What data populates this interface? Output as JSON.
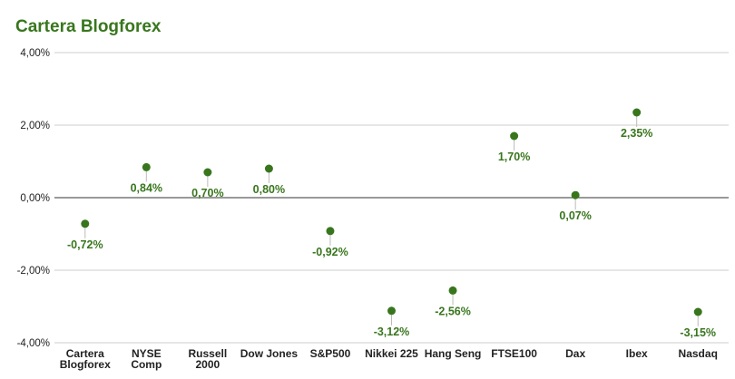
{
  "chart_data": {
    "type": "scatter",
    "title": "Cartera Blogforex",
    "categories": [
      [
        "Cartera",
        "Blogforex"
      ],
      [
        "NYSE",
        "Comp"
      ],
      [
        "Russell",
        "2000"
      ],
      [
        "Dow Jones"
      ],
      [
        "S&P500"
      ],
      [
        "Nikkei 225"
      ],
      [
        "Hang Seng"
      ],
      [
        "FTSE100"
      ],
      [
        "Dax"
      ],
      [
        "Ibex"
      ],
      [
        "Nasdaq"
      ]
    ],
    "values": [
      -0.72,
      0.84,
      0.7,
      0.8,
      -0.92,
      -3.12,
      -2.56,
      1.7,
      0.07,
      2.35,
      -3.15
    ],
    "data_labels": [
      "-0,72%",
      "0,84%",
      "0,70%",
      "0,80%",
      "-0,92%",
      "-3,12%",
      "-2,56%",
      "1,70%",
      "0,07%",
      "2,35%",
      "-3,15%"
    ],
    "ylim": [
      -4,
      4
    ],
    "yticks": [
      4,
      2,
      0,
      -2,
      -4
    ],
    "ytick_labels": [
      "4,00%",
      "2,00%",
      "0,00%",
      "-2,00%",
      "-4,00%"
    ],
    "grid": true,
    "legend": "none",
    "colors": {
      "point": "#38761d",
      "label": "#38761d",
      "title": "#38761d",
      "grid": "#cccccc",
      "zero_line": "#333333"
    }
  }
}
